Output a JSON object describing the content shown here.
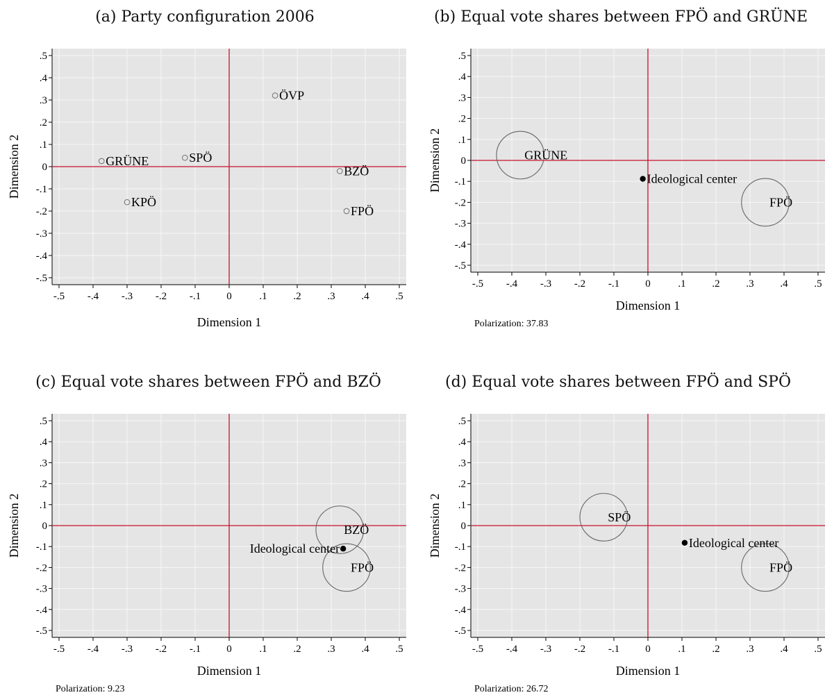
{
  "chart_data": [
    {
      "type": "scatter",
      "title": "(a) Party configuration 2006",
      "xlabel": "Dimension 1",
      "ylabel": "Dimension 2",
      "xlim": [
        -0.5,
        0.5
      ],
      "ylim": [
        -0.5,
        0.5
      ],
      "xticks": [
        "-.5",
        "-.4",
        "-.3",
        "-.2",
        "-.1",
        "0",
        ".1",
        ".2",
        ".3",
        ".4",
        ".5"
      ],
      "yticks": [
        ".5",
        ".4",
        ".3",
        ".2",
        ".1",
        "0",
        "-.1",
        "-.2",
        "-.3",
        "-.4",
        "-.5"
      ],
      "grid": true,
      "reference_lines": {
        "x": 0,
        "y": 0,
        "color": "#c8102e"
      },
      "parties": [
        {
          "label": "ÖVP",
          "x": 0.135,
          "y": 0.32
        },
        {
          "label": "GRÜNE",
          "x": -0.375,
          "y": 0.025
        },
        {
          "label": "SPÖ",
          "x": -0.13,
          "y": 0.04
        },
        {
          "label": "BZÖ",
          "x": 0.325,
          "y": -0.02
        },
        {
          "label": "KPÖ",
          "x": -0.3,
          "y": -0.16
        },
        {
          "label": "FPÖ",
          "x": 0.345,
          "y": -0.2
        }
      ],
      "circles": [],
      "center": null,
      "polarization": null
    },
    {
      "type": "scatter",
      "title": "(b) Equal vote shares between FPÖ and GRÜNE",
      "xlabel": "Dimension 1",
      "ylabel": "Dimension 2",
      "xlim": [
        -0.5,
        0.5
      ],
      "ylim": [
        -0.5,
        0.5
      ],
      "xticks": [
        "-.5",
        "-.4",
        "-.3",
        "-.2",
        "-.1",
        "0",
        ".1",
        ".2",
        ".3",
        ".4",
        ".5"
      ],
      "yticks": [
        ".5",
        ".4",
        ".3",
        ".2",
        ".1",
        "0",
        "-.1",
        "-.2",
        "-.3",
        "-.4",
        "-.5"
      ],
      "grid": true,
      "reference_lines": {
        "x": 0,
        "y": 0,
        "color": "#c8102e"
      },
      "parties": [],
      "circles": [
        {
          "label": "GRÜNE",
          "x": -0.375,
          "y": 0.025,
          "radius": 0.07
        },
        {
          "label": "FPÖ",
          "x": 0.345,
          "y": -0.2,
          "radius": 0.07
        }
      ],
      "center": {
        "label": "Ideological center",
        "x": -0.015,
        "y": -0.088
      },
      "polarization": "Polarization: 37.83"
    },
    {
      "type": "scatter",
      "title": "(c) Equal vote shares between FPÖ and BZÖ",
      "xlabel": "Dimension 1",
      "ylabel": "Dimension 2",
      "xlim": [
        -0.5,
        0.5
      ],
      "ylim": [
        -0.5,
        0.5
      ],
      "xticks": [
        "-.5",
        "-.4",
        "-.3",
        "-.2",
        "-.1",
        "0",
        ".1",
        ".2",
        ".3",
        ".4",
        ".5"
      ],
      "yticks": [
        ".5",
        ".4",
        ".3",
        ".2",
        ".1",
        "0",
        "-.1",
        "-.2",
        "-.3",
        "-.4",
        "-.5"
      ],
      "grid": true,
      "reference_lines": {
        "x": 0,
        "y": 0,
        "color": "#c8102e"
      },
      "parties": [],
      "circles": [
        {
          "label": "BZÖ",
          "x": 0.325,
          "y": -0.02,
          "radius": 0.07
        },
        {
          "label": "FPÖ",
          "x": 0.345,
          "y": -0.2,
          "radius": 0.07
        }
      ],
      "center": {
        "label": "Ideological center",
        "x": 0.335,
        "y": -0.11
      },
      "polarization": "Polarization: 9.23"
    },
    {
      "type": "scatter",
      "title": "(d) Equal vote shares between FPÖ and SPÖ",
      "xlabel": "Dimension 1",
      "ylabel": "Dimension 2",
      "xlim": [
        -0.5,
        0.5
      ],
      "ylim": [
        -0.5,
        0.5
      ],
      "xticks": [
        "-.5",
        "-.4",
        "-.3",
        "-.2",
        "-.1",
        "0",
        ".1",
        ".2",
        ".3",
        ".4",
        ".5"
      ],
      "yticks": [
        ".5",
        ".4",
        ".3",
        ".2",
        ".1",
        "0",
        "-.1",
        "-.2",
        "-.3",
        "-.4",
        "-.5"
      ],
      "grid": true,
      "reference_lines": {
        "x": 0,
        "y": 0,
        "color": "#c8102e"
      },
      "parties": [],
      "circles": [
        {
          "label": "SPÖ",
          "x": -0.13,
          "y": 0.04,
          "radius": 0.07
        },
        {
          "label": "FPÖ",
          "x": 0.345,
          "y": -0.2,
          "radius": 0.07
        }
      ],
      "center": {
        "label": "Ideological center",
        "x": 0.108,
        "y": -0.082
      },
      "polarization": "Polarization: 26.72"
    }
  ],
  "colors": {
    "plot_background": "#e5e5e5",
    "grid": "#f7f7f7",
    "reference_line": "#c8102e",
    "circle": "#666666",
    "marker": "#7a7a7a",
    "center_point": "#000000"
  }
}
